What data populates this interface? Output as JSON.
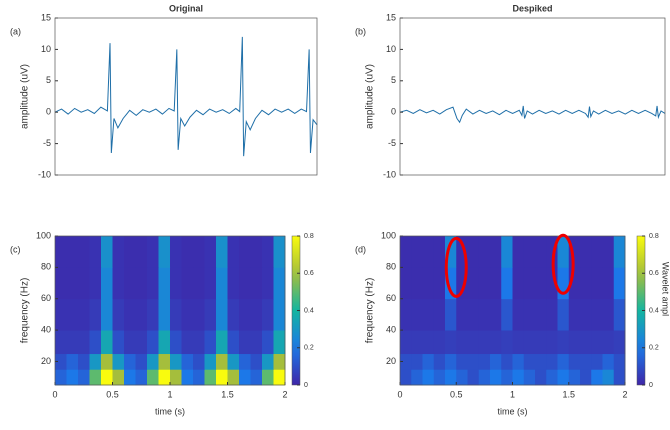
{
  "chart_data": [
    {
      "type": "line",
      "panel_label": "(a)",
      "title": "Original",
      "ylabel": "amplitude (uV)",
      "x": [
        0,
        0.05,
        0.1,
        0.15,
        0.2,
        0.25,
        0.3,
        0.35,
        0.4,
        0.42,
        0.43,
        0.45,
        0.48,
        0.52,
        0.57,
        0.62,
        0.67,
        0.72,
        0.77,
        0.82,
        0.87,
        0.91,
        0.93,
        0.94,
        0.96,
        0.99,
        1.03,
        1.08,
        1.13,
        1.18,
        1.23,
        1.28,
        1.33,
        1.38,
        1.41,
        1.43,
        1.44,
        1.46,
        1.49,
        1.53,
        1.58,
        1.63,
        1.68,
        1.73,
        1.78,
        1.83,
        1.88,
        1.92,
        1.94,
        1.95,
        1.97,
        2.0
      ],
      "series": [
        {
          "color": "#1f6fa8",
          "values": [
            0,
            0.5,
            -0.3,
            0.6,
            0,
            0.4,
            -0.2,
            0.8,
            0.2,
            11,
            -6.5,
            -1,
            -2.5,
            -1,
            0.3,
            -0.5,
            0.4,
            0,
            0.5,
            -0.3,
            0.6,
            0.2,
            10,
            -6,
            -1,
            -2.2,
            -0.8,
            0.3,
            -0.4,
            0.5,
            0,
            0.4,
            -0.2,
            0.6,
            0.1,
            12,
            -7,
            -1.5,
            -2.8,
            -1,
            0.3,
            -0.4,
            0.5,
            0,
            0.5,
            -0.2,
            0.5,
            0.1,
            10,
            -6.5,
            -1.2,
            -2
          ]
        }
      ],
      "xlim": [
        0,
        2
      ],
      "ylim": [
        -10,
        15
      ],
      "yticks": [
        -10,
        -5,
        0,
        5,
        10,
        15
      ]
    },
    {
      "type": "line",
      "panel_label": "(b)",
      "title": "Despiked",
      "ylabel": "amplitude (uV)",
      "x": [
        0,
        0.05,
        0.1,
        0.15,
        0.2,
        0.25,
        0.3,
        0.35,
        0.4,
        0.43,
        0.45,
        0.47,
        0.5,
        0.55,
        0.6,
        0.65,
        0.7,
        0.75,
        0.8,
        0.85,
        0.9,
        0.92,
        0.93,
        0.94,
        0.96,
        1.0,
        1.05,
        1.1,
        1.15,
        1.2,
        1.25,
        1.3,
        1.35,
        1.4,
        1.42,
        1.43,
        1.44,
        1.46,
        1.5,
        1.55,
        1.6,
        1.65,
        1.7,
        1.75,
        1.8,
        1.85,
        1.9,
        1.93,
        1.94,
        1.95,
        1.97,
        2.0
      ],
      "series": [
        {
          "color": "#1f6fa8",
          "values": [
            0,
            0.3,
            -0.2,
            0.4,
            -0.1,
            0.3,
            -0.3,
            0.4,
            0.8,
            -1,
            -1.6,
            -0.5,
            0.5,
            -0.3,
            0.3,
            -0.2,
            0.2,
            -0.4,
            0.3,
            -0.2,
            0.3,
            -0.5,
            1,
            -1,
            0.2,
            -0.3,
            0.3,
            -0.2,
            0.2,
            -0.3,
            0.3,
            -0.2,
            0.3,
            -0.2,
            -0.8,
            0.9,
            -0.7,
            0.2,
            -0.3,
            0.3,
            -0.2,
            0.2,
            -0.3,
            0.3,
            -0.2,
            0.3,
            -0.2,
            -0.6,
            1,
            -0.8,
            0.2,
            -0.2
          ]
        }
      ],
      "xlim": [
        0,
        2
      ],
      "ylim": [
        -10,
        15
      ],
      "yticks": [
        -10,
        -5,
        0,
        5,
        10,
        15
      ]
    },
    {
      "type": "heatmap",
      "panel_label": "(c)",
      "xlabel": "time (s)",
      "ylabel": "frequency (Hz)",
      "x_bins": [
        0,
        0.1,
        0.2,
        0.3,
        0.4,
        0.5,
        0.6,
        0.7,
        0.8,
        0.9,
        1,
        1.1,
        1.2,
        1.3,
        1.4,
        1.5,
        1.6,
        1.7,
        1.8,
        1.9,
        2
      ],
      "y_bins": [
        5,
        15,
        25,
        40,
        60,
        80,
        100
      ],
      "z": [
        [
          0.15,
          0.2,
          0.15,
          0.5,
          0.8,
          0.6,
          0.2,
          0.15,
          0.5,
          0.8,
          0.6,
          0.2,
          0.15,
          0.5,
          0.8,
          0.6,
          0.2,
          0.15,
          0.5,
          0.8
        ],
        [
          0.1,
          0.15,
          0.1,
          0.3,
          0.6,
          0.3,
          0.15,
          0.1,
          0.3,
          0.6,
          0.3,
          0.15,
          0.1,
          0.3,
          0.6,
          0.3,
          0.15,
          0.1,
          0.3,
          0.6
        ],
        [
          0.05,
          0.05,
          0.05,
          0.1,
          0.35,
          0.1,
          0.05,
          0.05,
          0.1,
          0.35,
          0.1,
          0.05,
          0.05,
          0.1,
          0.35,
          0.1,
          0.05,
          0.05,
          0.1,
          0.35
        ],
        [
          0.03,
          0.03,
          0.03,
          0.05,
          0.25,
          0.05,
          0.03,
          0.03,
          0.05,
          0.25,
          0.05,
          0.03,
          0.03,
          0.05,
          0.25,
          0.05,
          0.03,
          0.03,
          0.05,
          0.25
        ],
        [
          0.02,
          0.02,
          0.02,
          0.03,
          0.25,
          0.03,
          0.02,
          0.02,
          0.03,
          0.25,
          0.03,
          0.02,
          0.02,
          0.03,
          0.25,
          0.03,
          0.02,
          0.02,
          0.03,
          0.25
        ],
        [
          0.02,
          0.02,
          0.02,
          0.03,
          0.28,
          0.03,
          0.02,
          0.02,
          0.03,
          0.28,
          0.03,
          0.02,
          0.02,
          0.03,
          0.28,
          0.03,
          0.02,
          0.02,
          0.03,
          0.28
        ]
      ],
      "xlim": [
        0,
        2
      ],
      "xticks": [
        0,
        0.5,
        1,
        1.5,
        2
      ],
      "ylim": [
        5,
        100
      ],
      "yticks": [
        20,
        40,
        60,
        80,
        100
      ],
      "zlim": [
        0,
        0.8
      ],
      "zticks": [
        0,
        0.2,
        0.4,
        0.6,
        0.8
      ]
    },
    {
      "type": "heatmap",
      "panel_label": "(d)",
      "xlabel": "time (s)",
      "ylabel": "frequency (Hz)",
      "colorbar_label": "Wavelet amplitude (a.u.)",
      "x_bins": [
        0,
        0.1,
        0.2,
        0.3,
        0.4,
        0.5,
        0.6,
        0.7,
        0.8,
        0.9,
        1,
        1.1,
        1.2,
        1.3,
        1.4,
        1.5,
        1.6,
        1.7,
        1.8,
        1.9,
        2
      ],
      "y_bins": [
        5,
        15,
        25,
        40,
        60,
        80,
        100
      ],
      "z": [
        [
          0.1,
          0.15,
          0.2,
          0.15,
          0.2,
          0.15,
          0.1,
          0.15,
          0.2,
          0.15,
          0.2,
          0.15,
          0.1,
          0.15,
          0.2,
          0.15,
          0.1,
          0.2,
          0.25,
          0.1
        ],
        [
          0.1,
          0.1,
          0.15,
          0.1,
          0.15,
          0.1,
          0.1,
          0.1,
          0.15,
          0.1,
          0.15,
          0.1,
          0.1,
          0.1,
          0.15,
          0.1,
          0.1,
          0.1,
          0.15,
          0.1
        ],
        [
          0.05,
          0.05,
          0.05,
          0.05,
          0.06,
          0.05,
          0.05,
          0.05,
          0.05,
          0.06,
          0.05,
          0.05,
          0.05,
          0.05,
          0.06,
          0.05,
          0.05,
          0.05,
          0.05,
          0.06
        ],
        [
          0.03,
          0.03,
          0.03,
          0.03,
          0.12,
          0.03,
          0.03,
          0.03,
          0.03,
          0.12,
          0.03,
          0.03,
          0.03,
          0.03,
          0.12,
          0.03,
          0.03,
          0.03,
          0.03,
          0.12
        ],
        [
          0.02,
          0.02,
          0.02,
          0.02,
          0.2,
          0.02,
          0.02,
          0.02,
          0.02,
          0.2,
          0.02,
          0.02,
          0.02,
          0.02,
          0.2,
          0.02,
          0.02,
          0.02,
          0.02,
          0.2
        ],
        [
          0.02,
          0.02,
          0.02,
          0.02,
          0.25,
          0.02,
          0.02,
          0.02,
          0.02,
          0.25,
          0.02,
          0.02,
          0.02,
          0.02,
          0.25,
          0.02,
          0.02,
          0.02,
          0.02,
          0.25
        ]
      ],
      "xlim": [
        0,
        2
      ],
      "xticks": [
        0,
        0.5,
        1,
        1.5,
        2
      ],
      "ylim": [
        5,
        100
      ],
      "yticks": [
        20,
        40,
        60,
        80,
        100
      ],
      "zlim": [
        0,
        0.8
      ],
      "zticks": [
        0,
        0.2,
        0.4,
        0.6,
        0.8
      ]
    }
  ]
}
